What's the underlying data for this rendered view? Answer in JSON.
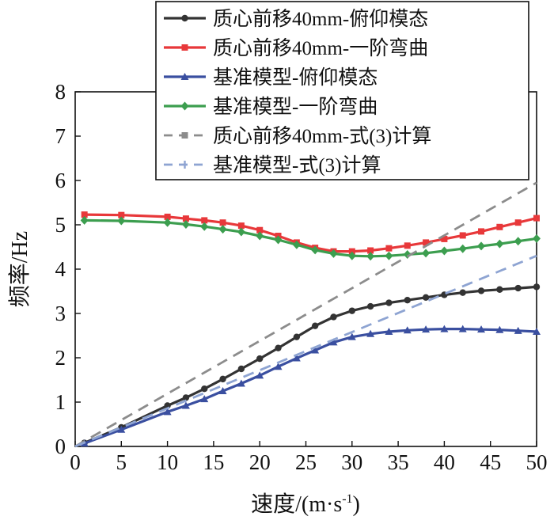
{
  "chart_data": {
    "type": "line",
    "xlabel": "速度/(m·s",
    "xlabel_sup": "-1",
    "xlabel_close": ")",
    "ylabel": "频率/Hz",
    "xlim": [
      0,
      50
    ],
    "ylim": [
      0,
      8
    ],
    "xticks": [
      0,
      5,
      10,
      15,
      20,
      25,
      30,
      35,
      40,
      45,
      50
    ],
    "yticks": [
      0,
      1,
      2,
      3,
      4,
      5,
      6,
      7,
      8
    ],
    "grid": false,
    "legend_position": "top-right",
    "series": [
      {
        "name": "质心前移40mm-俯仰模态",
        "color": "#333333",
        "style": "solid",
        "marker": "circle",
        "x": [
          1,
          5,
          10,
          12,
          14,
          16,
          18,
          20,
          22,
          24,
          26,
          28,
          30,
          32,
          34,
          36,
          38,
          40,
          42,
          44,
          46,
          48,
          50
        ],
        "y": [
          0.08,
          0.43,
          0.92,
          1.1,
          1.3,
          1.52,
          1.75,
          1.98,
          2.22,
          2.47,
          2.72,
          2.92,
          3.06,
          3.16,
          3.24,
          3.3,
          3.36,
          3.42,
          3.47,
          3.51,
          3.54,
          3.57,
          3.6
        ]
      },
      {
        "name": "质心前移40mm-一阶弯曲",
        "color": "#e8383a",
        "style": "solid",
        "marker": "square",
        "x": [
          1,
          5,
          10,
          12,
          14,
          16,
          18,
          20,
          22,
          24,
          26,
          28,
          30,
          32,
          34,
          36,
          38,
          40,
          42,
          44,
          46,
          48,
          50
        ],
        "y": [
          5.23,
          5.22,
          5.18,
          5.14,
          5.1,
          5.05,
          4.98,
          4.88,
          4.75,
          4.6,
          4.48,
          4.4,
          4.4,
          4.42,
          4.47,
          4.53,
          4.6,
          4.68,
          4.76,
          4.85,
          4.95,
          5.05,
          5.15
        ]
      },
      {
        "name": "基准模型-俯仰模态",
        "color": "#3a4fa0",
        "style": "solid",
        "marker": "triangle",
        "x": [
          1,
          5,
          10,
          12,
          14,
          16,
          18,
          20,
          22,
          24,
          26,
          28,
          30,
          32,
          34,
          36,
          38,
          40,
          42,
          44,
          46,
          48,
          50
        ],
        "y": [
          0.07,
          0.38,
          0.78,
          0.92,
          1.07,
          1.25,
          1.42,
          1.6,
          1.8,
          1.99,
          2.17,
          2.35,
          2.47,
          2.54,
          2.59,
          2.62,
          2.64,
          2.65,
          2.65,
          2.64,
          2.63,
          2.61,
          2.59
        ]
      },
      {
        "name": "基准模型-一阶弯曲",
        "color": "#3c9e4f",
        "style": "solid",
        "marker": "diamond",
        "x": [
          1,
          5,
          10,
          12,
          14,
          16,
          18,
          20,
          22,
          24,
          26,
          28,
          30,
          32,
          34,
          36,
          38,
          40,
          42,
          44,
          46,
          48,
          50
        ],
        "y": [
          5.1,
          5.09,
          5.05,
          5.01,
          4.96,
          4.9,
          4.84,
          4.75,
          4.66,
          4.55,
          4.43,
          4.35,
          4.3,
          4.29,
          4.3,
          4.33,
          4.36,
          4.41,
          4.46,
          4.52,
          4.57,
          4.63,
          4.69
        ]
      },
      {
        "name": "质心前移40mm-式(3)计算",
        "color": "#8c8c8c",
        "style": "dashed",
        "marker": "square",
        "x": [
          0,
          50
        ],
        "y": [
          0,
          5.95
        ]
      },
      {
        "name": "基准模型-式(3)计算",
        "color": "#8ea4d2",
        "style": "dashed",
        "marker": "dash",
        "x": [
          0,
          50
        ],
        "y": [
          0,
          4.3
        ]
      }
    ]
  }
}
